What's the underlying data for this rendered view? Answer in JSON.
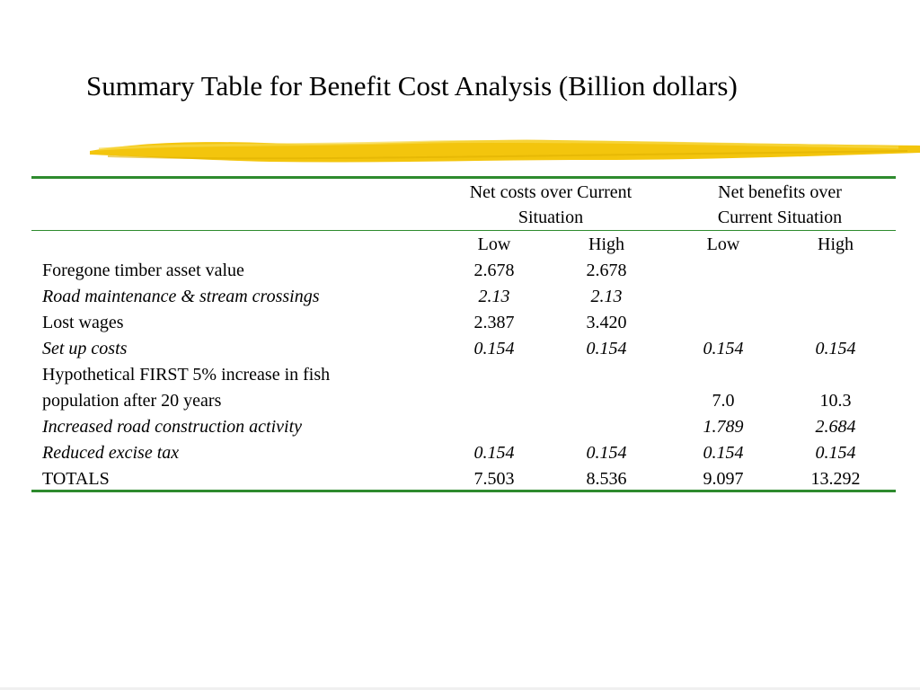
{
  "title": "Summary Table for Benefit Cost Analysis (Billion dollars)",
  "colors": {
    "rule": "#2e8b2e",
    "brush": "#f2c200"
  },
  "headers": {
    "costs": [
      "Net costs over Current",
      "Situation"
    ],
    "benefits": [
      "Net benefits over",
      "Current Situation"
    ],
    "sub": [
      "Low",
      "High",
      "Low",
      "High"
    ]
  },
  "rows": [
    {
      "label": "Foregone timber asset value",
      "italic": false,
      "cost_low": "2.678",
      "cost_high": "2.678",
      "ben_low": "",
      "ben_high": ""
    },
    {
      "label": "Road maintenance & stream crossings",
      "italic": true,
      "cost_low": "2.13",
      "cost_high": "2.13",
      "ben_low": "",
      "ben_high": ""
    },
    {
      "label": "Lost wages",
      "italic": false,
      "cost_low": "2.387",
      "cost_high": "3.420",
      "ben_low": "",
      "ben_high": ""
    },
    {
      "label": "Set up costs",
      "italic": true,
      "cost_low": "0.154",
      "cost_high": "0.154",
      "ben_low": "0.154",
      "ben_high": "0.154"
    },
    {
      "label": "Hypothetical FIRST 5% increase in fish",
      "italic": false,
      "cost_low": "",
      "cost_high": "",
      "ben_low": "",
      "ben_high": ""
    },
    {
      "label": "population after 20 years",
      "italic": false,
      "cost_low": "",
      "cost_high": "",
      "ben_low": "7.0",
      "ben_high": "10.3"
    },
    {
      "label": "Increased road construction activity",
      "italic": true,
      "cost_low": "",
      "cost_high": "",
      "ben_low": "1.789",
      "ben_high": "2.684"
    },
    {
      "label": "Reduced excise tax",
      "italic": true,
      "cost_low": "0.154",
      "cost_high": "0.154",
      "ben_low": "0.154",
      "ben_high": "0.154"
    },
    {
      "label": "TOTALS",
      "italic": false,
      "cost_low": "7.503",
      "cost_high": "8.536",
      "ben_low": "9.097",
      "ben_high": "13.292"
    }
  ]
}
